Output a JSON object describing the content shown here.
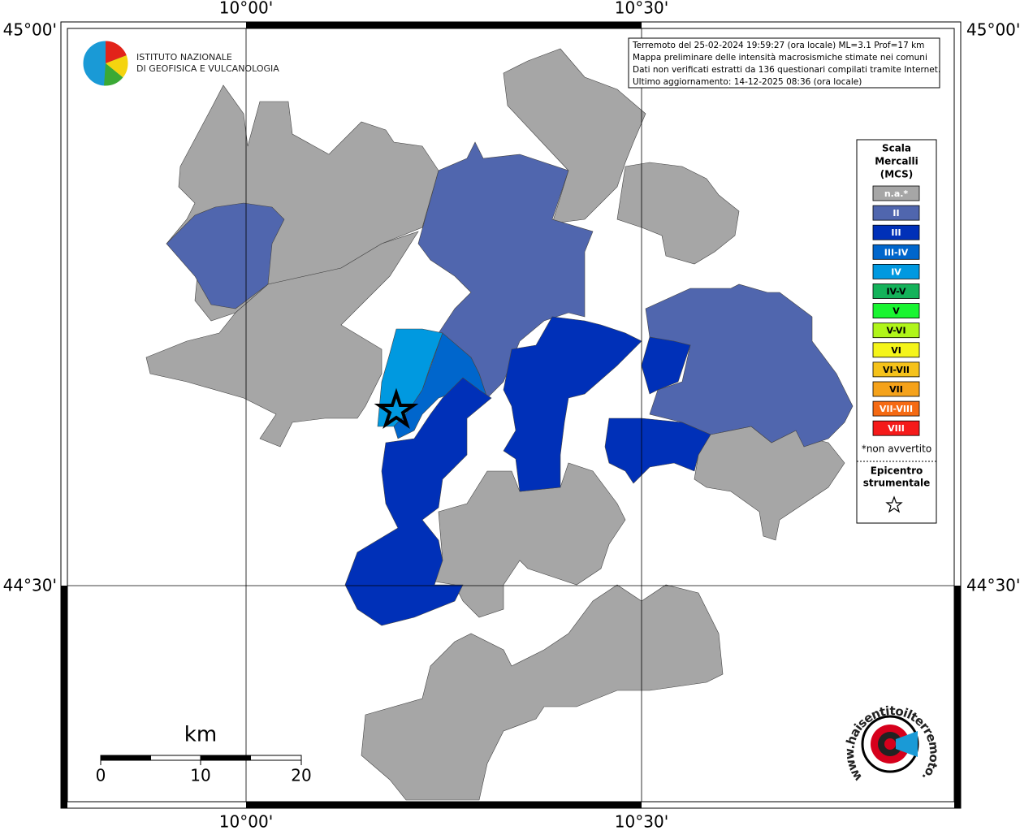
{
  "map": {
    "lon_labels": [
      "10°00'",
      "10°30'"
    ],
    "lat_labels": [
      "45°00'",
      "44°30'"
    ],
    "institute": [
      "ISTITUTO NAZIONALE",
      "DI GEOFISICA E VULCANOLOGIA"
    ],
    "info_lines": [
      "Terremoto del 25-02-2024 19:59:27 (ora locale) ML=3.1 Prof=17 km",
      "Mappa preliminare delle intensità macrosismiche stimate nei comuni",
      "Dati non verificati estratti da 136 questionari compilati tramite Internet.",
      "Ultimo aggiornamento: 14-12-2025 08:36 (ora locale)"
    ],
    "legend": {
      "title": [
        "Scala",
        "Mercalli",
        "(MCS)"
      ],
      "items": [
        {
          "label": "n.a.*",
          "color": "#a6a6a6"
        },
        {
          "label": "II",
          "color": "#5066ae"
        },
        {
          "label": "III",
          "color": "#0030b8"
        },
        {
          "label": "III-IV",
          "color": "#0066cc"
        },
        {
          "label": "IV",
          "color": "#0099e0"
        },
        {
          "label": "IV-V",
          "color": "#14b25a"
        },
        {
          "label": "V",
          "color": "#19f531"
        },
        {
          "label": "V-VI",
          "color": "#b0f51a"
        },
        {
          "label": "VI",
          "color": "#f5f51a"
        },
        {
          "label": "VI-VII",
          "color": "#f5c21a"
        },
        {
          "label": "VII",
          "color": "#f5a21a"
        },
        {
          "label": "VII-VIII",
          "color": "#f56a13"
        },
        {
          "label": "VIII",
          "color": "#f51a1a"
        }
      ],
      "note": "*non avvertito",
      "epicenter_title": [
        "Epicentro",
        "strumentale"
      ]
    },
    "scale_bar": {
      "unit": "km",
      "labels": [
        "0",
        "10",
        "20"
      ]
    },
    "site": "www.haisentitoilterremoto.it"
  }
}
